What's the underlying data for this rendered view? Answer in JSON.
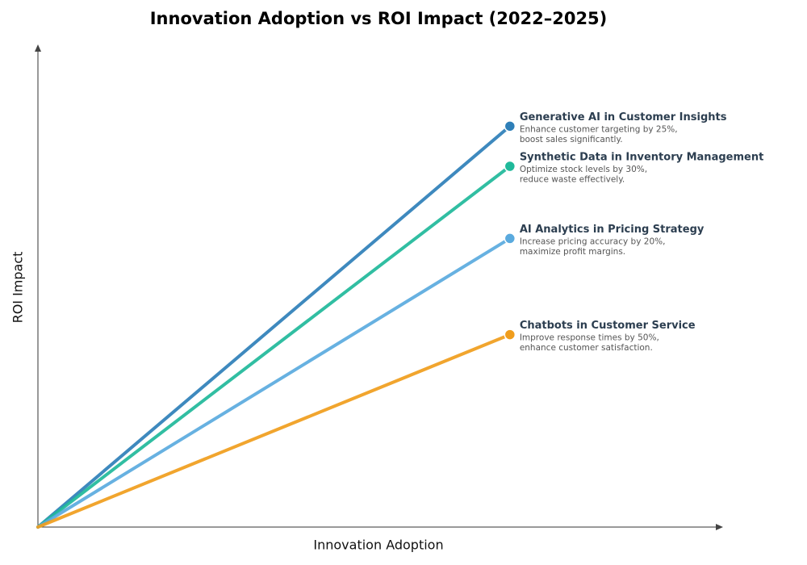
{
  "chart_data": {
    "type": "line",
    "title": "Innovation Adoption vs ROI Impact (2022–2025)",
    "x_label": "Innovation Adoption",
    "y_label": "ROI Impact",
    "xlim": [
      0,
      1.45
    ],
    "ylim": [
      0,
      1.2
    ],
    "series": [
      {
        "name": "Generative AI in Customer Insights",
        "color": "#2e7fb8",
        "x": [
          0,
          1
        ],
        "values": [
          0,
          1.0
        ],
        "description": [
          "Enhance customer targeting by 25%,",
          "boost sales significantly."
        ]
      },
      {
        "name": "Synthetic Data in Inventory Management",
        "color": "#1fb99a",
        "x": [
          0,
          1
        ],
        "values": [
          0,
          0.9
        ],
        "description": [
          "Optimize stock levels by 30%,",
          "reduce waste effectively."
        ]
      },
      {
        "name": "AI Analytics in Pricing Strategy",
        "color": "#5aaade",
        "x": [
          0,
          1
        ],
        "values": [
          0,
          0.72
        ],
        "description": [
          "Increase pricing accuracy by 20%,",
          "maximize profit margins."
        ]
      },
      {
        "name": "Chatbots in Customer Service",
        "color": "#f09d1c",
        "x": [
          0,
          1
        ],
        "values": [
          0,
          0.48
        ],
        "description": [
          "Improve response times by 50%,",
          "enhance customer satisfaction."
        ]
      }
    ]
  }
}
